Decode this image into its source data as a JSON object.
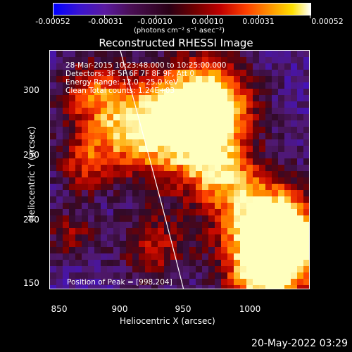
{
  "colorbar": {
    "tick_labels": [
      "-0.00052",
      "-0.00031",
      "-0.00010",
      "0.00010",
      "0.00031",
      "0.00052"
    ],
    "units": "(photons cm⁻² s⁻¹ asec⁻²)"
  },
  "title": "Reconstructed RHESSI Image",
  "info": {
    "line1": "28-Mar-2015 10:23:48.000 to 10:25:00.000",
    "line2": "Detectors: 3F 5F 6F 7F 8F 9F, Att 0",
    "line3": "Energy Range: 12.0 - 25.0 keV",
    "line4": "Clean     Total counts: 1.24E+03",
    "peak": "Position of Peak = [998,204]"
  },
  "axes": {
    "xlabel": "Heliocentric X (arcsec)",
    "ylabel": "Heliocentric Y (arcsec)",
    "xticks": [
      "850",
      "900",
      "950",
      "1000"
    ],
    "yticks": [
      "150",
      "200",
      "250",
      "300"
    ]
  },
  "footer_date": "20-May-2022 03:29",
  "colors": {
    "limb": "#ffffff",
    "background": "#000000"
  }
}
